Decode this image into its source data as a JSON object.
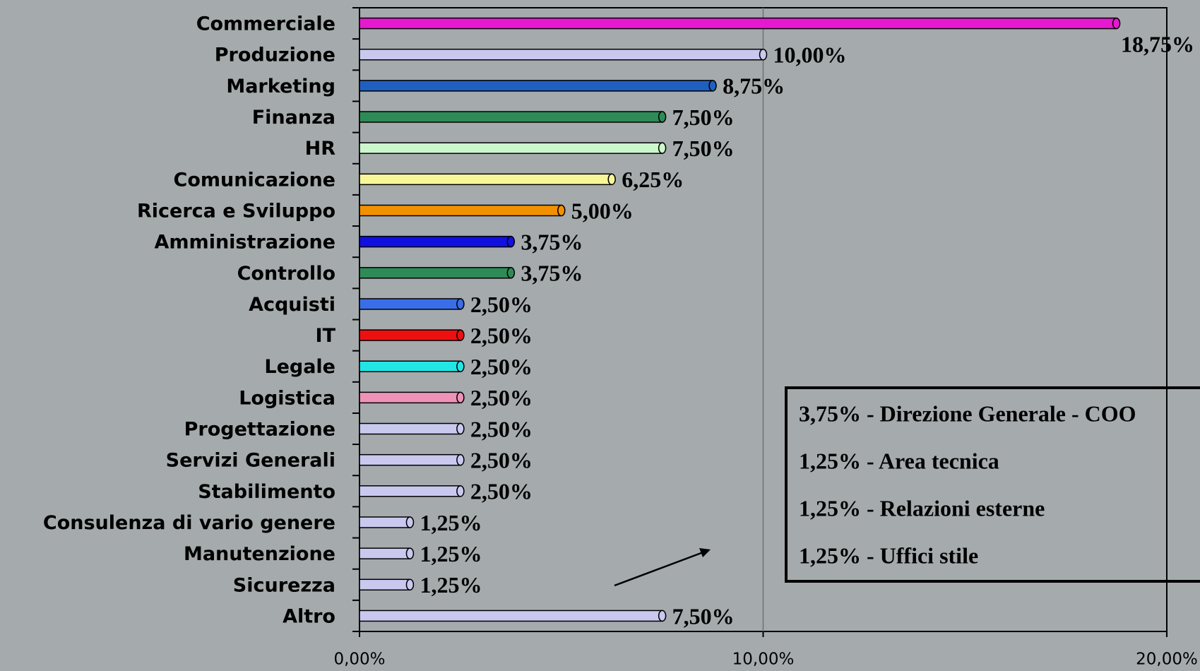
{
  "chart_data": {
    "type": "bar",
    "orientation": "horizontal",
    "categories": [
      "Commerciale",
      "Produzione",
      "Marketing",
      "Finanza",
      "HR",
      "Comunicazione",
      "Ricerca e Sviluppo",
      "Amministrazione",
      "Controllo",
      "Acquisti",
      "IT",
      "Legale",
      "Logistica",
      "Progettazione",
      "Servizi Generali",
      "Stabilimento",
      "Consulenza di vario genere",
      "Manutenzione",
      "Sicurezza",
      "Altro"
    ],
    "values": [
      18.75,
      10,
      8.75,
      7.5,
      7.5,
      6.25,
      5,
      3.75,
      3.75,
      2.5,
      2.5,
      2.5,
      2.5,
      2.5,
      2.5,
      2.5,
      1.25,
      1.25,
      1.25,
      7.5
    ],
    "value_labels": [
      "18,75%",
      "10,00%",
      "8,75%",
      "7,50%",
      "7,50%",
      "6,25%",
      "5,00%",
      "3,75%",
      "3,75%",
      "2,50%",
      "2,50%",
      "2,50%",
      "2,50%",
      "2,50%",
      "2,50%",
      "2,50%",
      "1,25%",
      "1,25%",
      "1,25%",
      "7,50%"
    ],
    "colors": [
      "#e619d0",
      "#c9c9f0",
      "#1f5fbf",
      "#2e8b57",
      "#ccf7cc",
      "#f7f79a",
      "#f29100",
      "#1010e0",
      "#2e8b57",
      "#3a6ee8",
      "#ee1010",
      "#22e6e6",
      "#ee92b8",
      "#c9c9f0",
      "#c9c9f0",
      "#c9c9f0",
      "#c9c9f0",
      "#c9c9f0",
      "#c9c9f0",
      "#c9c9f0"
    ],
    "xlim": [
      0,
      20
    ],
    "xticks": [
      {
        "value": 0,
        "label": "0,00%"
      },
      {
        "value": 10,
        "label": "10,00%"
      },
      {
        "value": 20,
        "label": "20,00%"
      }
    ],
    "grid": true,
    "annotations": [
      "3,75% - Direzione Generale - COO",
      "1,25% - Area tecnica",
      "1,25% - Relazioni esterne",
      "1,25% - Uffici stile"
    ]
  }
}
